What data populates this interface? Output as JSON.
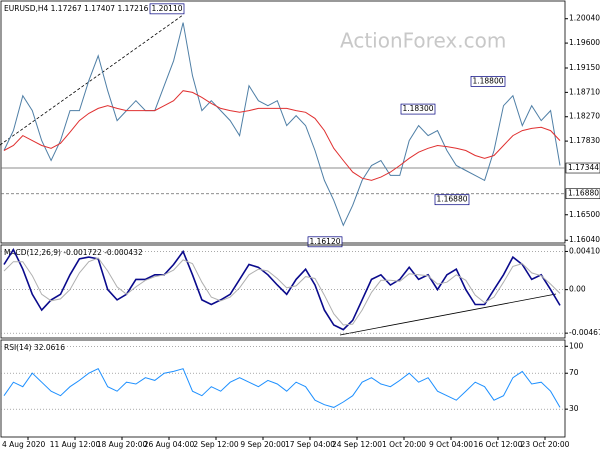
{
  "watermark": "ActionForex.com",
  "chart_data": [
    {
      "type": "line",
      "title": "EURUSD,H4 1.17267 1.17407 1.17216 1.17344",
      "ylim": [
        1.1599,
        1.2036
      ],
      "yticks": [
        {
          "value": 1.2004,
          "label": "1.20040"
        },
        {
          "value": 1.196,
          "label": "1.19600"
        },
        {
          "value": 1.1915,
          "label": "1.19150"
        },
        {
          "value": 1.1871,
          "label": "1.18710"
        },
        {
          "value": 1.1827,
          "label": "1.18270"
        },
        {
          "value": 1.1783,
          "label": "1.17830"
        },
        {
          "value": 1.165,
          "label": "1.16500"
        },
        {
          "value": 1.1604,
          "label": "1.16040"
        }
      ],
      "series": [
        {
          "name": "Price",
          "color": "#4f7fa6",
          "values": [
            1.1766,
            1.1802,
            1.1865,
            1.1838,
            1.1784,
            1.1748,
            1.1784,
            1.1838,
            1.1838,
            1.1892,
            1.1937,
            1.1874,
            1.182,
            1.1838,
            1.1856,
            1.1838,
            1.1838,
            1.1883,
            1.1928,
            1.1997,
            1.1901,
            1.1838,
            1.1856,
            1.1838,
            1.182,
            1.1793,
            1.1883,
            1.1856,
            1.1847,
            1.1856,
            1.1811,
            1.1829,
            1.1811,
            1.1766,
            1.1712,
            1.1676,
            1.1631,
            1.1667,
            1.1712,
            1.1739,
            1.1748,
            1.1721,
            1.1721,
            1.1784,
            1.1811,
            1.1793,
            1.1802,
            1.1766,
            1.1739,
            1.173,
            1.1721,
            1.1712,
            1.1766,
            1.1847,
            1.1865,
            1.1811,
            1.1847,
            1.182,
            1.1838,
            1.1739
          ]
        },
        {
          "name": "MA",
          "color": "#e03030",
          "values": [
            1.1766,
            1.1775,
            1.1793,
            1.1784,
            1.1775,
            1.177,
            1.1779,
            1.1799,
            1.182,
            1.1833,
            1.1842,
            1.1847,
            1.1842,
            1.1838,
            1.1838,
            1.1838,
            1.1838,
            1.1847,
            1.1856,
            1.1874,
            1.1871,
            1.1862,
            1.1851,
            1.1842,
            1.1838,
            1.1835,
            1.1838,
            1.1842,
            1.1842,
            1.1842,
            1.1842,
            1.1838,
            1.1835,
            1.1824,
            1.1802,
            1.177,
            1.1748,
            1.1727,
            1.1716,
            1.1712,
            1.1718,
            1.1727,
            1.1739,
            1.1752,
            1.1763,
            1.177,
            1.1775,
            1.1773,
            1.177,
            1.1766,
            1.1757,
            1.1752,
            1.1757,
            1.1775,
            1.1793,
            1.1802,
            1.1806,
            1.1808,
            1.1802,
            1.1784
          ]
        }
      ],
      "annotations": [
        {
          "value": 1.2011,
          "label": "1.20110"
        },
        {
          "value": 1.183,
          "label": "1.18300"
        },
        {
          "value": 1.188,
          "label": "1.18800"
        },
        {
          "value": 1.1688,
          "label": "1.16880"
        },
        {
          "value": 1.1612,
          "label": "1.16120"
        }
      ],
      "levels": [
        1.17344,
        {
          "value": 1.1688,
          "label": "1.16880"
        }
      ]
    },
    {
      "type": "line",
      "title": "MACD(12,26,9) -0.001722 -0.000432",
      "ylim": [
        -0.0052,
        0.0048
      ],
      "yticks": [
        0.004108,
        {
          "value": 0,
          "label": "0.00"
        },
        -0.004678
      ],
      "series": [
        {
          "name": "MACD",
          "color": "#0a0a8c",
          "values": [
            0.0027,
            0.0043,
            0.0022,
            -0.0005,
            -0.0022,
            -0.0011,
            -0.0005,
            0.0016,
            0.0033,
            0.0035,
            0.0033,
            0,
            -0.0011,
            -0.0005,
            0.0011,
            0.0011,
            0.0016,
            0.0016,
            0.0027,
            0.0041,
            0.0016,
            -0.0011,
            -0.0016,
            -0.0011,
            -0.0005,
            0.0011,
            0.0027,
            0.0024,
            0.0016,
            0.0005,
            -0.0005,
            0.0011,
            0.0022,
            0.0005,
            -0.0022,
            -0.0038,
            -0.0043,
            -0.0033,
            -0.0011,
            0.0011,
            0.0016,
            0.0005,
            0.0011,
            0.0024,
            0.0011,
            0.0016,
            0,
            0.0016,
            0.0022,
            0,
            -0.0016,
            -0.0016,
            0,
            0.0016,
            0.0035,
            0.0027,
            0.0011,
            0.0016,
            0,
            -0.0017
          ]
        },
        {
          "name": "Signal",
          "color": "#b0b0b0",
          "values": [
            0.002,
            0.003,
            0.003,
            0.0015,
            -0.0005,
            -0.0012,
            -0.001,
            0,
            0.0018,
            0.003,
            0.0034,
            0.002,
            0.0003,
            -0.0005,
            0.0003,
            0.001,
            0.0014,
            0.0016,
            0.0021,
            0.0032,
            0.0028,
            0.0008,
            -0.0008,
            -0.0012,
            -0.0008,
            0.0002,
            0.0016,
            0.0022,
            0.002,
            0.0012,
            0.0002,
            0.0004,
            0.0014,
            0.0012,
            -0.0006,
            -0.0026,
            -0.0038,
            -0.0037,
            -0.0022,
            -0.0003,
            0.001,
            0.001,
            0.0009,
            0.0017,
            0.0016,
            0.0015,
            0.0006,
            0.0008,
            0.0016,
            0.001,
            -0.0006,
            -0.0014,
            -0.0008,
            0.0008,
            0.0025,
            0.0028,
            0.0018,
            0.0015,
            0.0006,
            -0.0004
          ]
        }
      ]
    },
    {
      "type": "line",
      "title": "RSI(14) 32.0616",
      "ylim": [
        -1,
        107
      ],
      "yticks": [
        100,
        70,
        30
      ],
      "series": [
        {
          "name": "RSI",
          "color": "#1e90ff",
          "values": [
            45,
            60,
            55,
            70,
            60,
            50,
            45,
            55,
            62,
            70,
            75,
            55,
            50,
            60,
            58,
            65,
            62,
            70,
            72,
            75,
            50,
            45,
            55,
            50,
            60,
            65,
            60,
            55,
            62,
            58,
            50,
            60,
            55,
            40,
            35,
            32,
            38,
            45,
            60,
            65,
            58,
            55,
            62,
            70,
            60,
            65,
            50,
            45,
            40,
            50,
            60,
            55,
            40,
            45,
            65,
            72,
            58,
            60,
            50,
            32
          ]
        }
      ],
      "x_labels": [
        "4 Aug 2020",
        "11 Aug 12:00",
        "18 Aug 20:00",
        "26 Aug 04:00",
        "2 Sep 12:00",
        "9 Sep 20:00",
        "17 Sep 04:00",
        "24 Sep 12:00",
        "1 Oct 20:00",
        "9 Oct 04:00",
        "16 Oct 12:00",
        "23 Oct 20:00"
      ]
    }
  ]
}
